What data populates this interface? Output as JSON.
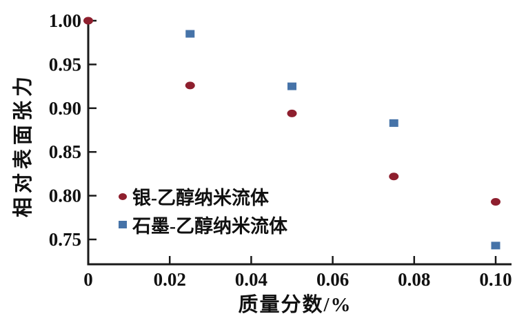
{
  "chart_data": {
    "type": "scatter",
    "title": "",
    "xlabel": "质量分数/%",
    "ylabel": "相对表面张力",
    "xlim": [
      0,
      0.104
    ],
    "ylim": [
      0.722,
      1.003
    ],
    "grid": false,
    "legend_position": "inside-left-lower",
    "x_ticks": [
      0,
      0.02,
      0.04,
      0.06,
      0.08,
      0.1
    ],
    "x_tick_labels": [
      "0",
      "0.02",
      "0.04",
      "0.06",
      "0.08",
      "0.10"
    ],
    "y_ticks": [
      1.0,
      0.95,
      0.9,
      0.85,
      0.8,
      0.75
    ],
    "y_tick_labels": [
      "1.00",
      "0.95",
      "0.90",
      "0.85",
      "0.80",
      "0.75"
    ],
    "series": [
      {
        "name": "银-乙醇纳米流体",
        "marker": "circle",
        "color": "#8e1f2e",
        "x": [
          0,
          0.025,
          0.05,
          0.075,
          0.1
        ],
        "y": [
          1.0,
          0.926,
          0.894,
          0.822,
          0.793
        ]
      },
      {
        "name": "石墨-乙醇纳米流体",
        "marker": "square",
        "color": "#4673a8",
        "x": [
          0.025,
          0.05,
          0.075,
          0.1
        ],
        "y": [
          0.985,
          0.925,
          0.883,
          0.743
        ]
      }
    ]
  },
  "colors": {
    "axis": "#1a1a1a",
    "tick_label": "#111111",
    "background": "#ffffff"
  }
}
